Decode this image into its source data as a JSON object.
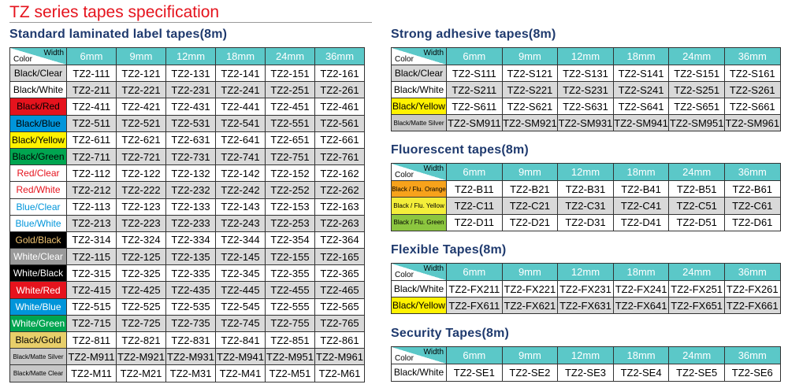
{
  "title": "TZ series tapes specification",
  "tables": [
    {
      "title": "Standard laminated label tapes(8m)",
      "width_label": "Width",
      "color_label": "Color",
      "widths": [
        "6mm",
        "9mm",
        "12mm",
        "18mm",
        "24mm",
        "36mm"
      ],
      "rows": [
        {
          "color": "Black/Clear",
          "bg": "#d6d6d6",
          "fg": "#000000",
          "codes": [
            "TZ2-111",
            "TZ2-121",
            "TZ2-131",
            "TZ2-141",
            "TZ2-151",
            "TZ2-161"
          ]
        },
        {
          "color": "Black/White",
          "bg": "#ffffff",
          "fg": "#000000",
          "codes": [
            "TZ2-211",
            "TZ2-221",
            "TZ2-231",
            "TZ2-241",
            "TZ2-251",
            "TZ2-261"
          ]
        },
        {
          "color": "Black/Red",
          "bg": "#e5131d",
          "fg": "#000000",
          "codes": [
            "TZ2-411",
            "TZ2-421",
            "TZ2-431",
            "TZ2-441",
            "TZ2-451",
            "TZ2-461"
          ]
        },
        {
          "color": "Black/Blue",
          "bg": "#0095da",
          "fg": "#000000",
          "codes": [
            "TZ2-511",
            "TZ2-521",
            "TZ2-531",
            "TZ2-541",
            "TZ2-551",
            "TZ2-561"
          ]
        },
        {
          "color": "Black/Yellow",
          "bg": "#fff200",
          "fg": "#000000",
          "codes": [
            "TZ2-611",
            "TZ2-621",
            "TZ2-631",
            "TZ2-641",
            "TZ2-651",
            "TZ2-661"
          ]
        },
        {
          "color": "Black/Green",
          "bg": "#00a550",
          "fg": "#000000",
          "codes": [
            "TZ2-711",
            "TZ2-721",
            "TZ2-731",
            "TZ2-741",
            "TZ2-751",
            "TZ2-761"
          ]
        },
        {
          "color": "Red/Clear",
          "bg": "#ffffff",
          "fg": "#e5131d",
          "codes": [
            "TZ2-112",
            "TZ2-122",
            "TZ2-132",
            "TZ2-142",
            "TZ2-152",
            "TZ2-162"
          ]
        },
        {
          "color": "Red/White",
          "bg": "#ffffff",
          "fg": "#e5131d",
          "codes": [
            "TZ2-212",
            "TZ2-222",
            "TZ2-232",
            "TZ2-242",
            "TZ2-252",
            "TZ2-262"
          ]
        },
        {
          "color": "Blue/Clear",
          "bg": "#ffffff",
          "fg": "#0095da",
          "codes": [
            "TZ2-113",
            "TZ2-123",
            "TZ2-133",
            "TZ2-143",
            "TZ2-153",
            "TZ2-163"
          ]
        },
        {
          "color": "Blue/White",
          "bg": "#ffffff",
          "fg": "#0095da",
          "codes": [
            "TZ2-213",
            "TZ2-223",
            "TZ2-233",
            "TZ2-243",
            "TZ2-253",
            "TZ2-263"
          ]
        },
        {
          "color": "Gold/Black",
          "bg": "#000000",
          "fg": "#f2c572",
          "codes": [
            "TZ2-314",
            "TZ2-324",
            "TZ2-334",
            "TZ2-344",
            "TZ2-354",
            "TZ2-364"
          ]
        },
        {
          "color": "White/Clear",
          "bg": "#9a9a9a",
          "fg": "#ffffff",
          "codes": [
            "TZ2-115",
            "TZ2-125",
            "TZ2-135",
            "TZ2-145",
            "TZ2-155",
            "TZ2-165"
          ]
        },
        {
          "color": "White/Black",
          "bg": "#000000",
          "fg": "#ffffff",
          "codes": [
            "TZ2-315",
            "TZ2-325",
            "TZ2-335",
            "TZ2-345",
            "TZ2-355",
            "TZ2-365"
          ]
        },
        {
          "color": "White/Red",
          "bg": "#e5131d",
          "fg": "#ffffff",
          "codes": [
            "TZ2-415",
            "TZ2-425",
            "TZ2-435",
            "TZ2-445",
            "TZ2-455",
            "TZ2-465"
          ]
        },
        {
          "color": "White/Blue",
          "bg": "#0095da",
          "fg": "#ffffff",
          "codes": [
            "TZ2-515",
            "TZ2-525",
            "TZ2-535",
            "TZ2-545",
            "TZ2-555",
            "TZ2-565"
          ]
        },
        {
          "color": "White/Green",
          "bg": "#00a550",
          "fg": "#ffffff",
          "codes": [
            "TZ2-715",
            "TZ2-725",
            "TZ2-735",
            "TZ2-745",
            "TZ2-755",
            "TZ2-765"
          ]
        },
        {
          "color": "Black/Gold",
          "bg": "#e8cf6a",
          "fg": "#000000",
          "codes": [
            "TZ2-811",
            "TZ2-821",
            "TZ2-831",
            "TZ2-841",
            "TZ2-851",
            "TZ2-861"
          ]
        },
        {
          "color": "Black/Matte Silver",
          "bg": "#c8c8c8",
          "fg": "#000000",
          "codes": [
            "TZ2-M911",
            "TZ2-M921",
            "TZ2-M931",
            "TZ2-M941",
            "TZ2-M951",
            "TZ2-M961"
          ]
        },
        {
          "color": "Black/Matte Clear",
          "bg": "#c8c8c8",
          "fg": "#000000",
          "codes": [
            "TZ2-M11",
            "TZ2-M21",
            "TZ2-M31",
            "TZ2-M41",
            "TZ2-M51",
            "TZ2-M61"
          ]
        }
      ]
    },
    {
      "title": "Strong adhesive tapes(8m)",
      "width_label": "Width",
      "color_label": "Color",
      "widths": [
        "6mm",
        "9mm",
        "12mm",
        "18mm",
        "24mm",
        "36mm"
      ],
      "rows": [
        {
          "color": "Black/Clear",
          "bg": "#d6d6d6",
          "fg": "#000000",
          "codes": [
            "TZ2-S111",
            "TZ2-S121",
            "TZ2-S131",
            "TZ2-S141",
            "TZ2-S151",
            "TZ2-S161"
          ]
        },
        {
          "color": "Black/White",
          "bg": "#ffffff",
          "fg": "#000000",
          "codes": [
            "TZ2-S211",
            "TZ2-S221",
            "TZ2-S231",
            "TZ2-S241",
            "TZ2-S251",
            "TZ2-S261"
          ]
        },
        {
          "color": "Black/Yellow",
          "bg": "#fff200",
          "fg": "#000000",
          "codes": [
            "TZ2-S611",
            "TZ2-S621",
            "TZ2-S631",
            "TZ2-S641",
            "TZ2-S651",
            "TZ2-S661"
          ]
        },
        {
          "color": "Black/Matte Silver",
          "bg": "#c8c8c8",
          "fg": "#000000",
          "codes": [
            "TZ2-SM911",
            "TZ2-SM921",
            "TZ2-SM931",
            "TZ2-SM941",
            "TZ2-SM951",
            "TZ2-SM961"
          ]
        }
      ]
    },
    {
      "title": "Fluorescent tapes(8m)",
      "width_label": "Width",
      "color_label": "Color",
      "widths": [
        "6mm",
        "9mm",
        "12mm",
        "18mm",
        "24mm",
        "36mm"
      ],
      "rows": [
        {
          "color": "Black / Flu. Orange",
          "bg": "#f7a21b",
          "fg": "#000000",
          "codes": [
            "TZ2-B11",
            "TZ2-B21",
            "TZ2-B31",
            "TZ2-B41",
            "TZ2-B51",
            "TZ2-B61"
          ]
        },
        {
          "color": "Black / Flu. Yellow",
          "bg": "#f4ee3a",
          "fg": "#000000",
          "codes": [
            "TZ2-C11",
            "TZ2-C21",
            "TZ2-C31",
            "TZ2-C41",
            "TZ2-C51",
            "TZ2-C61"
          ]
        },
        {
          "color": "Black / Flu. Green",
          "bg": "#8cc63f",
          "fg": "#000000",
          "codes": [
            "TZ2-D11",
            "TZ2-D21",
            "TZ2-D31",
            "TZ2-D41",
            "TZ2-D51",
            "TZ2-D61"
          ]
        }
      ]
    },
    {
      "title": "Flexible Tapes(8m)",
      "width_label": "Width",
      "color_label": "Color",
      "widths": [
        "6mm",
        "9mm",
        "12mm",
        "18mm",
        "24mm",
        "36mm"
      ],
      "rows": [
        {
          "color": "Black/White",
          "bg": "#ffffff",
          "fg": "#000000",
          "codes": [
            "TZ2-FX211",
            "TZ2-FX221",
            "TZ2-FX231",
            "TZ2-FX241",
            "TZ2-FX251",
            "TZ2-FX261"
          ]
        },
        {
          "color": "Black/Yellow",
          "bg": "#fff200",
          "fg": "#000000",
          "codes": [
            "TZ2-FX611",
            "TZ2-FX621",
            "TZ2-FX631",
            "TZ2-FX641",
            "TZ2-FX651",
            "TZ2-FX661"
          ]
        }
      ]
    },
    {
      "title": "Security Tapes(8m)",
      "width_label": "Width",
      "color_label": "Color",
      "widths": [
        "6mm",
        "9mm",
        "12mm",
        "18mm",
        "24mm",
        "36mm"
      ],
      "rows": [
        {
          "color": "Black/White",
          "bg": "#ffffff",
          "fg": "#000000",
          "codes": [
            "TZ2-SE1",
            "TZ2-SE2",
            "TZ2-SE3",
            "TZ2-SE4",
            "TZ2-SE5",
            "TZ2-SE6"
          ]
        }
      ]
    }
  ]
}
